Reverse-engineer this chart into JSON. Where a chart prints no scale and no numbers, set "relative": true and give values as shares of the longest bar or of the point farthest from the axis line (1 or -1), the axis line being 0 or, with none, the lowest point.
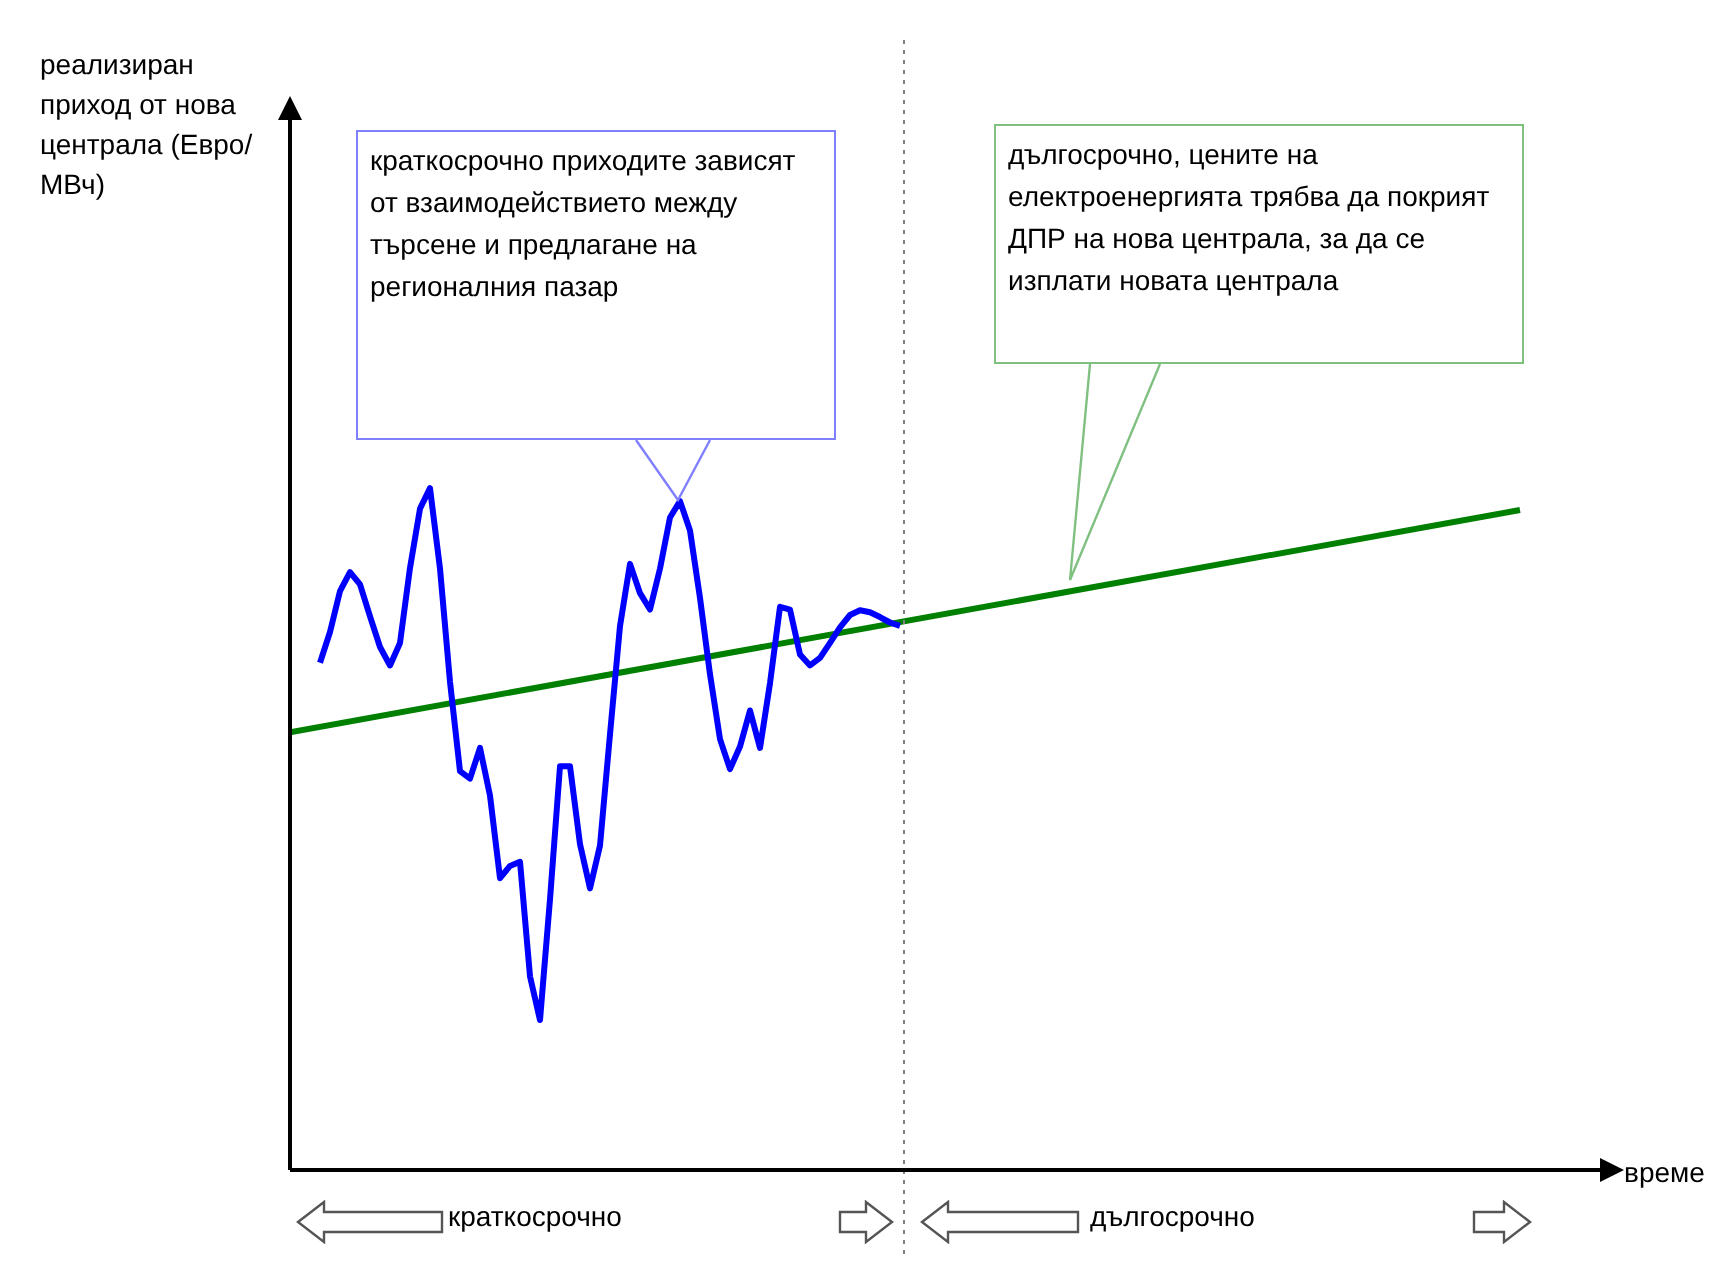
{
  "chart_data": {
    "type": "line",
    "relative": true,
    "xlabel": "време",
    "tick_labels": false,
    "grid": false,
    "legend": false,
    "marker": "none",
    "line_style": "solid",
    "categories": [
      null,
      null,
      null,
      null,
      null,
      null,
      null,
      null,
      null,
      null,
      null,
      null,
      null,
      null,
      null,
      null,
      null,
      null,
      null,
      null,
      null,
      null,
      null,
      null,
      null,
      null,
      null,
      null,
      null,
      null,
      null,
      null,
      null,
      null,
      null,
      null,
      null,
      null,
      null,
      null,
      null,
      null,
      null,
      null,
      null,
      null,
      null,
      null,
      null,
      null,
      null,
      null,
      null,
      null,
      null,
      null,
      null,
      null,
      null,
      null,
      null,
      null,
      null,
      null,
      null,
      null,
      null,
      null,
      null,
      null,
      null,
      null,
      null,
      null,
      null,
      null,
      null,
      null,
      null,
      null,
      null,
      null,
      null,
      null,
      null,
      null,
      null,
      null,
      null,
      null,
      null,
      null,
      null,
      null,
      null,
      null,
      null,
      null,
      null,
      null,
      null,
      null,
      null,
      null,
      null,
      null,
      null,
      null,
      null,
      null,
      null,
      null,
      null,
      null,
      null,
      null,
      null,
      null,
      null,
      null,
      null,
      null,
      null,
      null
    ],
    "series": [
      {
        "color": "#0000ff",
        "values": [
          null,
          null,
          null,
          0.744,
          0.789,
          0.849,
          0.877,
          0.859,
          0.812,
          0.767,
          0.74,
          0.773,
          0.883,
          0.97,
          1,
          0.882,
          0.716,
          0.585,
          0.574,
          0.619,
          0.549,
          0.428,
          0.446,
          0.452,
          0.284,
          0.22,
          0.397,
          0.592,
          0.592,
          0.478,
          0.413,
          0.476,
          0.639,
          0.798,
          0.889,
          0.846,
          0.822,
          0.882,
          0.957,
          0.981,
          0.938,
          0.839,
          0.727,
          0.632,
          0.588,
          0.621,
          0.674,
          0.619,
          0.714,
          0.826,
          0.822,
          0.756,
          0.74,
          0.751,
          0.773,
          0.796,
          0.814,
          0.821,
          0.818,
          0.811,
          0.803,
          0.798,
          null,
          null,
          null,
          null,
          null,
          null,
          null,
          null,
          null,
          null,
          null,
          null,
          null,
          null,
          null,
          null,
          null,
          null,
          null,
          null,
          null,
          null,
          null,
          null,
          null,
          null,
          null,
          null,
          null,
          null,
          null,
          null,
          null,
          null,
          null,
          null,
          null,
          null,
          null,
          null,
          null,
          null,
          null,
          null,
          null,
          null,
          null,
          null,
          null,
          null,
          null,
          null,
          null,
          null,
          null,
          null,
          null,
          null,
          null,
          null,
          null,
          null
        ]
      },
      {
        "color": "#008000",
        "values": [
          0.642,
          null,
          null,
          null,
          null,
          null,
          null,
          null,
          null,
          null,
          null,
          null,
          null,
          null,
          null,
          null,
          null,
          null,
          null,
          null,
          null,
          null,
          null,
          null,
          null,
          null,
          null,
          null,
          null,
          null,
          null,
          null,
          null,
          null,
          null,
          null,
          null,
          null,
          null,
          null,
          null,
          null,
          null,
          null,
          null,
          null,
          null,
          null,
          null,
          null,
          null,
          null,
          null,
          null,
          null,
          null,
          null,
          null,
          null,
          null,
          null,
          null,
          null,
          null,
          null,
          null,
          null,
          null,
          null,
          null,
          null,
          null,
          null,
          null,
          null,
          null,
          null,
          null,
          null,
          null,
          null,
          null,
          null,
          null,
          null,
          null,
          null,
          null,
          null,
          null,
          null,
          null,
          null,
          null,
          null,
          null,
          null,
          null,
          null,
          null,
          null,
          null,
          null,
          null,
          null,
          null,
          null,
          null,
          null,
          null,
          null,
          null,
          null,
          null,
          null,
          null,
          null,
          null,
          null,
          null,
          null,
          null,
          null,
          0.968
        ]
      }
    ],
    "annotations": [
      "реализиран приход от нова централа (Евро/МВч)",
      "краткосрочно приходите зависят от взаимодействието между търсене и предлагане на регионалния пазар",
      "дългосрочно, цените на електроенергията трябва да покрият ДПР на нова централа, за да се изплати новата централа",
      "краткосрочно",
      "дългосрочно"
    ]
  }
}
